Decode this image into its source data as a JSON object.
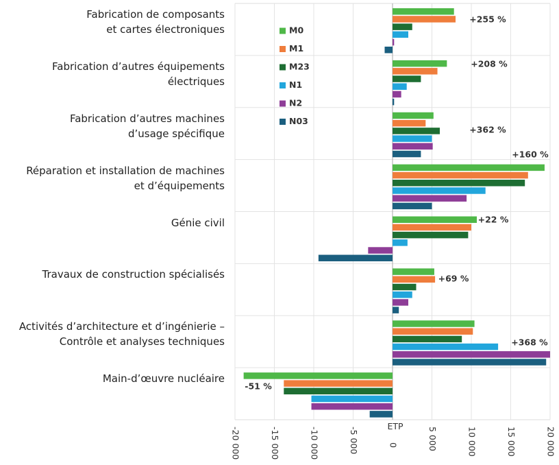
{
  "chart_data": {
    "type": "barh",
    "categories": [
      "Fabrication de composants\net cartes électroniques",
      "Fabrication d’autres équipements\nélectriques",
      "Fabrication d’autres machines\nd’usage spécifique",
      "Réparation et installation de machines\net d’équipements",
      "Génie civil",
      "Travaux de construction spécialisés",
      "Activités d’architecture et d’ingénierie –\nContrôle et analyses techniques",
      "Main-d’œuvre nucléaire"
    ],
    "series": [
      {
        "name": "M0",
        "color": "#4fb848",
        "values": [
          7800,
          6900,
          5200,
          19300,
          10700,
          5300,
          10400,
          -18900
        ]
      },
      {
        "name": "M1",
        "color": "#ef7d3c",
        "values": [
          8000,
          5700,
          4200,
          17200,
          10000,
          5400,
          10200,
          -13800
        ]
      },
      {
        "name": "M23",
        "color": "#1e6e33",
        "values": [
          2500,
          3600,
          6000,
          16800,
          9600,
          3000,
          8800,
          -13800
        ]
      },
      {
        "name": "N1",
        "color": "#22a6dc",
        "values": [
          2000,
          1800,
          5000,
          11800,
          1900,
          2500,
          13400,
          -10300
        ]
      },
      {
        "name": "N2",
        "color": "#8e3d97",
        "values": [
          200,
          1100,
          5100,
          9400,
          -3100,
          2000,
          20000,
          -10300
        ]
      },
      {
        "name": "N03",
        "color": "#1b5f7f",
        "values": [
          -1000,
          200,
          3600,
          5000,
          -9400,
          800,
          19500,
          -2900
        ]
      }
    ],
    "annotations": [
      {
        "text": "+255 %",
        "color": "#ef7d3c"
      },
      {
        "text": "+208 %",
        "color": "#4fb848"
      },
      {
        "text": "+362 %",
        "color": "#1e6e33"
      },
      {
        "text": "+160 %",
        "color": "#4fb848"
      },
      {
        "text": "+22 %",
        "color": "#4fb848"
      },
      {
        "text": "+69 %",
        "color": "#ef7d3c"
      },
      {
        "text": "+368 %",
        "color": "#8e3d97"
      },
      {
        "text": "-51 %",
        "color": "#4fb848"
      }
    ],
    "x_label": "ETP",
    "xlim": [
      -20000,
      20000
    ],
    "xticks": [
      {
        "value": -20000,
        "label": "-20 000"
      },
      {
        "value": -15000,
        "label": "-15 000"
      },
      {
        "value": -10000,
        "label": "-10 000"
      },
      {
        "value": -5000,
        "label": "-5 000"
      },
      0,
      {
        "value": 5000,
        "label": "5 000"
      },
      {
        "value": 10000,
        "label": "10 000"
      },
      {
        "value": 15000,
        "label": "15 000"
      },
      {
        "value": 20000,
        "label": "20 000"
      }
    ],
    "grid": true
  }
}
